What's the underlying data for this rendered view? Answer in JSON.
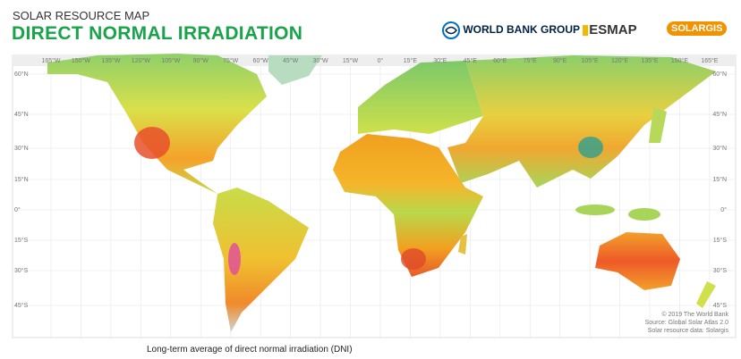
{
  "header": {
    "title": "SOLAR RESOURCE MAP",
    "subtitle": "DIRECT NORMAL IRRADIATION"
  },
  "logos": [
    "WORLD BANK GROUP",
    "ESMAP",
    "SOLARGIS"
  ],
  "map": {
    "lon_labels": [
      "165°W",
      "150°W",
      "135°W",
      "120°W",
      "105°W",
      "90°W",
      "75°W",
      "60°W",
      "45°W",
      "30°W",
      "15°W",
      "0°",
      "15°E",
      "30°E",
      "45°E",
      "60°E",
      "75°E",
      "90°E",
      "105°E",
      "120°E",
      "135°E",
      "150°E",
      "165°E"
    ],
    "lat_labels": [
      "60°N",
      "45°N",
      "30°N",
      "15°N",
      "0°",
      "15°S",
      "30°S",
      "45°S"
    ],
    "credits": [
      "© 2019 The World Bank",
      "Source: Global Solar Atlas 2.0",
      "Solar resource data: Solargis"
    ]
  },
  "caption": "Long-term average of direct normal irradiation (DNI)"
}
